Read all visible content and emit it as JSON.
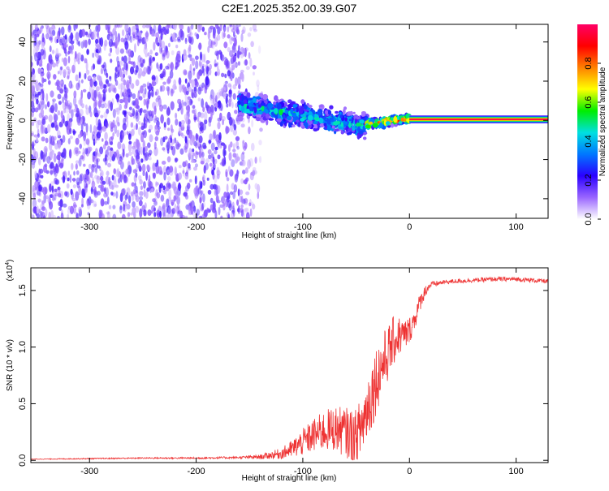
{
  "title": "C2E1.2025.352.00.39.G07",
  "chart_data": [
    {
      "type": "heatmap",
      "xlabel": "Height of straight line (km)",
      "ylabel": "Frequency (Hz)",
      "xlim": [
        -355,
        130
      ],
      "ylim": [
        -50,
        49
      ],
      "xticks": [
        -300,
        -200,
        -100,
        0,
        100
      ],
      "yticks": [
        -40,
        -20,
        0,
        20,
        40
      ],
      "colorbar": {
        "label": "Normalized spectral amplitude",
        "range": [
          0,
          1
        ],
        "ticks": [
          "0.0",
          "0.2",
          "0.4",
          "0.6",
          "0.8"
        ],
        "tick_values": [
          0,
          0.2,
          0.4,
          0.6,
          0.8
        ],
        "colors": [
          "#ffffff",
          "#9a66ff",
          "#2a00ff",
          "#0077ff",
          "#00e0e0",
          "#00ee00",
          "#ffff00",
          "#ff8000",
          "#ff0000",
          "#ff0066"
        ]
      },
      "regions": [
        {
          "kind": "noise",
          "x": [
            -355,
            -135
          ],
          "y": [
            -50,
            49
          ],
          "amplitude": 0.15
        },
        {
          "kind": "signal_track",
          "x": [
            -160,
            -40
          ],
          "y_center_start": 8,
          "y_center_end": -3,
          "spread_hz": 8,
          "amplitude": 0.4
        },
        {
          "kind": "signal_track",
          "x": [
            -40,
            0
          ],
          "y_center_start": -2,
          "y_center_end": 1,
          "spread_hz": 3,
          "amplitude": 0.75
        },
        {
          "kind": "steady_line",
          "x": [
            0,
            130
          ],
          "y_center": 0.5,
          "amplitude": 1.0
        }
      ]
    },
    {
      "type": "line",
      "xlabel": "Height of straight line (km)",
      "ylabel": "SNR (10 * v/v)",
      "y_multiplier": "(x10",
      "y_multiplier_exp": "4",
      "y_multiplier_close": ")",
      "xlim": [
        -355,
        130
      ],
      "ylim": [
        -0.02,
        1.7
      ],
      "xticks": [
        -300,
        -200,
        -100,
        0,
        100
      ],
      "yticks": [
        0.0,
        0.5,
        1.0,
        1.5
      ],
      "ytick_labels": [
        "0.0",
        "0.5",
        "1.0",
        "1.5"
      ],
      "series": [
        {
          "color": "#ee3333",
          "x": [
            -355,
            -300,
            -250,
            -200,
            -160,
            -140,
            -120,
            -110,
            -100,
            -90,
            -80,
            -70,
            -60,
            -50,
            -45,
            -40,
            -35,
            -30,
            -25,
            -20,
            -15,
            -10,
            -5,
            0,
            5,
            10,
            15,
            20,
            25,
            30,
            40,
            60,
            80,
            100,
            130
          ],
          "y": [
            0.01,
            0.015,
            0.02,
            0.02,
            0.025,
            0.03,
            0.06,
            0.1,
            0.16,
            0.22,
            0.26,
            0.28,
            0.25,
            0.2,
            0.3,
            0.45,
            0.6,
            0.75,
            0.85,
            0.95,
            1.05,
            1.1,
            1.1,
            1.15,
            1.25,
            1.4,
            1.5,
            1.55,
            1.56,
            1.57,
            1.58,
            1.59,
            1.6,
            1.6,
            1.58
          ],
          "noise": [
            0.003,
            0.005,
            0.006,
            0.008,
            0.01,
            0.02,
            0.05,
            0.08,
            0.12,
            0.15,
            0.18,
            0.2,
            0.22,
            0.25,
            0.28,
            0.3,
            0.32,
            0.3,
            0.28,
            0.25,
            0.22,
            0.18,
            0.15,
            0.12,
            0.1,
            0.08,
            0.05,
            0.03,
            0.025,
            0.02,
            0.02,
            0.02,
            0.02,
            0.02,
            0.02
          ]
        }
      ]
    }
  ]
}
